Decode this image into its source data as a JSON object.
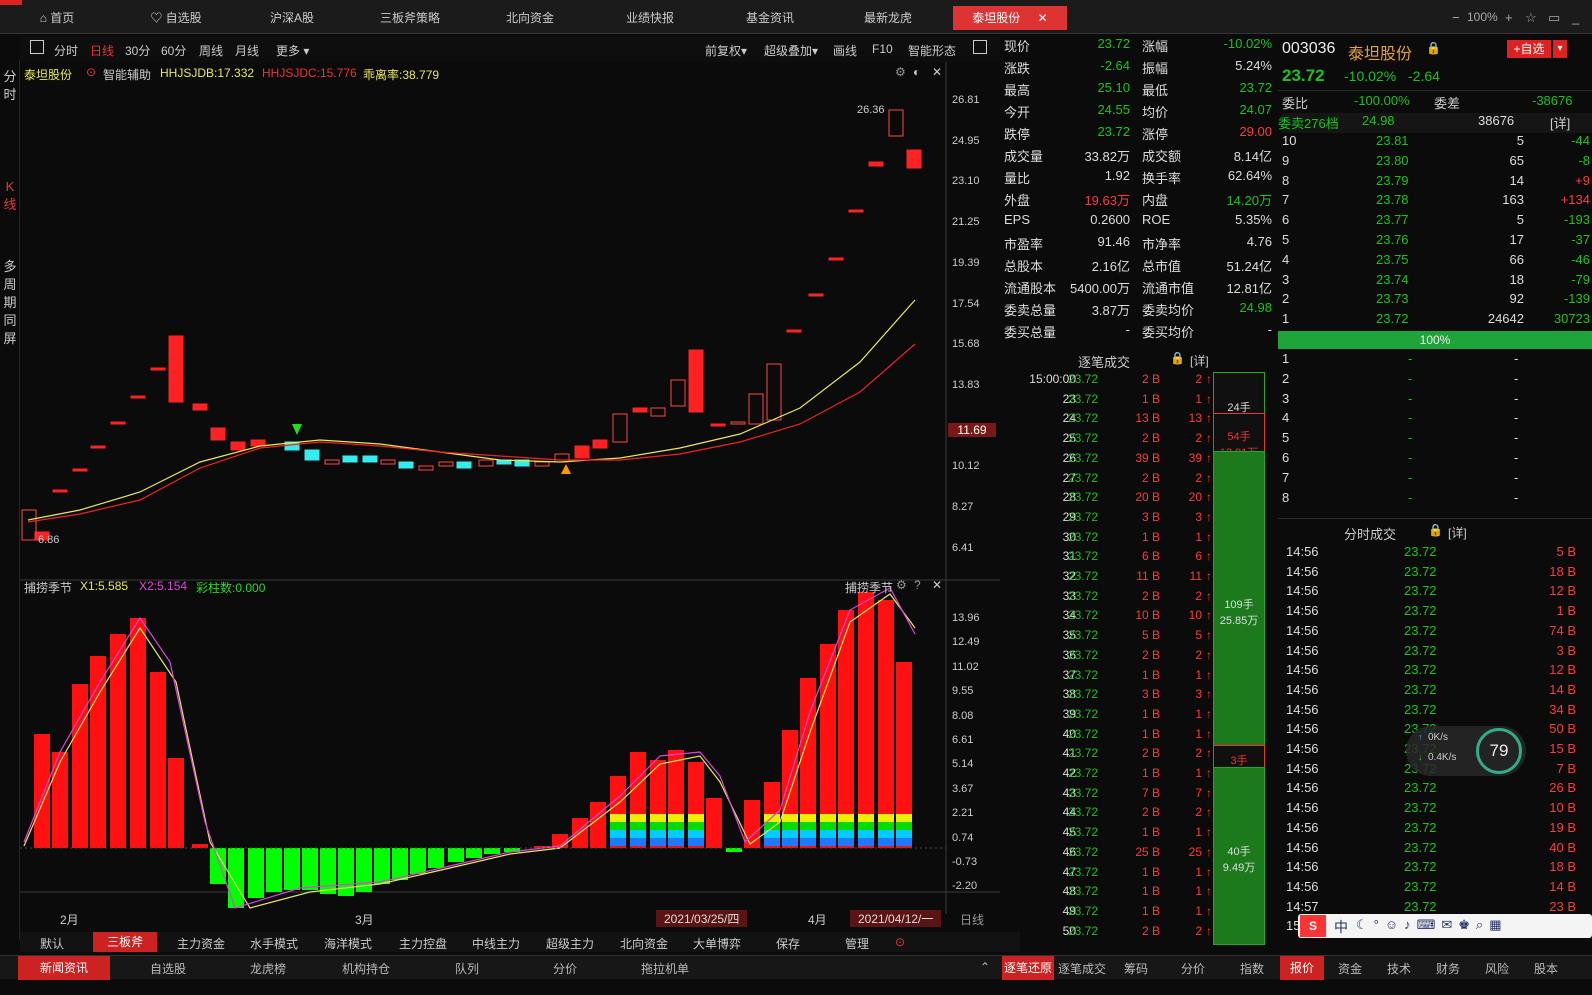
{
  "nav": {
    "tabs": [
      "首页",
      "自选股",
      "沪深A股",
      "三板斧策略",
      "北向资金",
      "业绩快报",
      "基金资讯",
      "最新龙虎",
      "泰坦股份"
    ],
    "zoom": "100%"
  },
  "side": {
    "items": [
      "分时",
      "K线",
      "多周期同屏"
    ]
  },
  "toolbar": {
    "left": [
      "分时",
      "日线",
      "30分",
      "60分",
      "周线",
      "月线",
      "更多"
    ],
    "right": [
      "前复权",
      "超级叠加",
      "画线",
      "F10",
      "智能形态"
    ]
  },
  "chart": {
    "stock": "泰坦股份",
    "assist": "智能辅助",
    "ind1": "HHJSJDB:17.332",
    "ind2": "HHJSJDC:15.776",
    "ind3": "乖离率:38.779",
    "price_labels": [
      "26.81",
      "24.95",
      "23.10",
      "21.25",
      "19.39",
      "17.54",
      "15.68",
      "13.83",
      "11.69",
      "10.12",
      "8.27",
      "6.41"
    ],
    "current_tag": "11.69",
    "high_label": "26.36",
    "low_label": "6.86"
  },
  "sub": {
    "title": "捕捞季节",
    "x1": "X1:5.585",
    "x2": "X2:5.154",
    "cai": "彩柱数:0.000",
    "right_title": "捕捞季节",
    "labels": [
      "13.96",
      "12.49",
      "11.02",
      "9.55",
      "8.08",
      "6.61",
      "5.14",
      "3.67",
      "2.21",
      "0.74",
      "-0.73",
      "-2.20"
    ]
  },
  "dates": {
    "feb": "2月",
    "mar": "3月",
    "apr": "4月",
    "d1": "2021/03/25/四",
    "d2": "2021/04/12/一",
    "period": "日线"
  },
  "bottom_tabs": [
    "默认",
    "三板斧",
    "主力资金",
    "水手模式",
    "海洋模式",
    "主力控盘",
    "中线主力",
    "超级主力",
    "北向资金",
    "大单博弈",
    "保存",
    "管理"
  ],
  "footer_left": [
    "新闻资讯",
    "自选股",
    "龙虎榜",
    "机构持仓",
    "队列",
    "分价",
    "拖拉机单"
  ],
  "footer_mid": [
    "逐笔还原",
    "逐笔成交",
    "筹码",
    "分价",
    "指数"
  ],
  "footer_right": [
    "报价",
    "资金",
    "技术",
    "财务",
    "风险",
    "股本"
  ],
  "quote": [
    [
      "现价",
      "23.72",
      "涨幅",
      "-10.02%"
    ],
    [
      "涨跌",
      "-2.64",
      "振幅",
      "5.24%"
    ],
    [
      "最高",
      "25.10",
      "最低",
      "23.72"
    ],
    [
      "今开",
      "24.55",
      "均价",
      "24.07"
    ],
    [
      "跌停",
      "23.72",
      "涨停",
      "29.00"
    ],
    [
      "成交量",
      "33.82万",
      "成交额",
      "8.14亿"
    ],
    [
      "量比",
      "1.92",
      "换手率",
      "62.64%"
    ],
    [
      "外盘",
      "19.63万",
      "内盘",
      "14.20万"
    ],
    [
      "EPS",
      "0.2600",
      "ROE",
      "5.35%"
    ],
    [
      "市盈率",
      "91.46",
      "市净率",
      "4.76"
    ],
    [
      "总股本",
      "2.16亿",
      "总市值",
      "51.24亿"
    ],
    [
      "流通股本",
      "5400.00万",
      "流通市值",
      "12.81亿"
    ],
    [
      "委卖总量",
      "3.87万",
      "委卖均价",
      "24.98"
    ],
    [
      "委买总量",
      "-",
      "委买均价",
      "-"
    ]
  ],
  "tape": {
    "title": "逐笔成交",
    "detail": "[详]",
    "rows": [
      [
        "15:00:00",
        "23.72",
        "2 B",
        "2"
      ],
      [
        "23",
        "23.72",
        "1 B",
        "1"
      ],
      [
        "24",
        "23.72",
        "13 B",
        "13"
      ],
      [
        "25",
        "23.72",
        "2 B",
        "2"
      ],
      [
        "26",
        "23.72",
        "39 B",
        "39"
      ],
      [
        "27",
        "23.72",
        "2 B",
        "2"
      ],
      [
        "28",
        "23.72",
        "20 B",
        "20"
      ],
      [
        "29",
        "23.72",
        "3 B",
        "3"
      ],
      [
        "30",
        "23.72",
        "1 B",
        "1"
      ],
      [
        "31",
        "23.72",
        "6 B",
        "6"
      ],
      [
        "32",
        "23.72",
        "11 B",
        "11"
      ],
      [
        "33",
        "23.72",
        "2 B",
        "2"
      ],
      [
        "34",
        "23.72",
        "10 B",
        "10"
      ],
      [
        "35",
        "23.72",
        "5 B",
        "5"
      ],
      [
        "36",
        "23.72",
        "2 B",
        "2"
      ],
      [
        "37",
        "23.72",
        "1 B",
        "1"
      ],
      [
        "38",
        "23.72",
        "3 B",
        "3"
      ],
      [
        "39",
        "23.72",
        "1 B",
        "1"
      ],
      [
        "40",
        "23.72",
        "1 B",
        "1"
      ],
      [
        "41",
        "23.72",
        "2 B",
        "2"
      ],
      [
        "42",
        "23.72",
        "1 B",
        "1"
      ],
      [
        "43",
        "23.72",
        "7 B",
        "7"
      ],
      [
        "44",
        "23.72",
        "2 B",
        "2"
      ],
      [
        "45",
        "23.72",
        "1 B",
        "1"
      ],
      [
        "46",
        "23.72",
        "25 B",
        "25"
      ],
      [
        "47",
        "23.72",
        "1 B",
        "1"
      ],
      [
        "48",
        "23.72",
        "1 B",
        "1"
      ],
      [
        "49",
        "23.72",
        "1 B",
        "1"
      ],
      [
        "50",
        "23.72",
        "2 B",
        "2"
      ]
    ],
    "blocks": [
      [
        "24手",
        "5.69万"
      ],
      [
        "54手",
        "12.81万"
      ],
      [
        "109手",
        "25.85万"
      ],
      [
        "3手",
        "0.71万"
      ],
      [
        "40手",
        "9.49万"
      ]
    ]
  },
  "ob": {
    "code": "003036",
    "name": "泰坦股份",
    "price": "23.72",
    "pct": "-10.02%",
    "chg": "-2.64",
    "btn": "+自选",
    "wb_label": "委比",
    "wb": "-100.00%",
    "wc_label": "委差",
    "wc": "-38676",
    "ask_label": "委卖276档",
    "ask_price": "24.98",
    "ask_vol": "38676",
    "detail": "[详]",
    "asks": [
      [
        "10",
        "23.81",
        "5",
        "-44"
      ],
      [
        "9",
        "23.80",
        "65",
        "-8"
      ],
      [
        "8",
        "23.79",
        "14",
        "+9"
      ],
      [
        "7",
        "23.78",
        "163",
        "+134"
      ],
      [
        "6",
        "23.77",
        "5",
        "-193"
      ],
      [
        "5",
        "23.76",
        "17",
        "-37"
      ],
      [
        "4",
        "23.75",
        "66",
        "-46"
      ],
      [
        "3",
        "23.74",
        "18",
        "-79"
      ],
      [
        "2",
        "23.73",
        "92",
        "-139"
      ],
      [
        "1",
        "23.72",
        "24642",
        "30723"
      ]
    ],
    "pct_bar": "100%",
    "bids": [
      "1",
      "2",
      "3",
      "4",
      "5",
      "6",
      "7",
      "8"
    ],
    "dash": "-"
  },
  "fen": {
    "title": "分时成交",
    "detail": "[详]",
    "rows": [
      [
        "14:56",
        "23.72",
        "5 B"
      ],
      [
        "14:56",
        "23.72",
        "18 B"
      ],
      [
        "14:56",
        "23.72",
        "12 B"
      ],
      [
        "14:56",
        "23.72",
        "1 B"
      ],
      [
        "14:56",
        "23.72",
        "74 B"
      ],
      [
        "14:56",
        "23.72",
        "3 B"
      ],
      [
        "14:56",
        "23.72",
        "12 B"
      ],
      [
        "14:56",
        "23.72",
        "14 B"
      ],
      [
        "14:56",
        "23.72",
        "34 B"
      ],
      [
        "14:56",
        "23.72",
        "50 B"
      ],
      [
        "14:56",
        "23.72",
        "15 B"
      ],
      [
        "14:56",
        "23.72",
        "7 B"
      ],
      [
        "14:56",
        "23.72",
        "26 B"
      ],
      [
        "14:56",
        "23.72",
        "10 B"
      ],
      [
        "14:56",
        "23.72",
        "19 B"
      ],
      [
        "14:56",
        "23.72",
        "40 B"
      ],
      [
        "14:56",
        "23.72",
        "18 B"
      ],
      [
        "14:56",
        "23.72",
        "14 B"
      ],
      [
        "14:57",
        "23.72",
        "23 B"
      ],
      [
        "15:",
        "23.72",
        "..."
      ]
    ]
  },
  "net": {
    "up": "0K/s",
    "down": "0.4K/s",
    "pct": "79"
  },
  "ime": "中"
}
